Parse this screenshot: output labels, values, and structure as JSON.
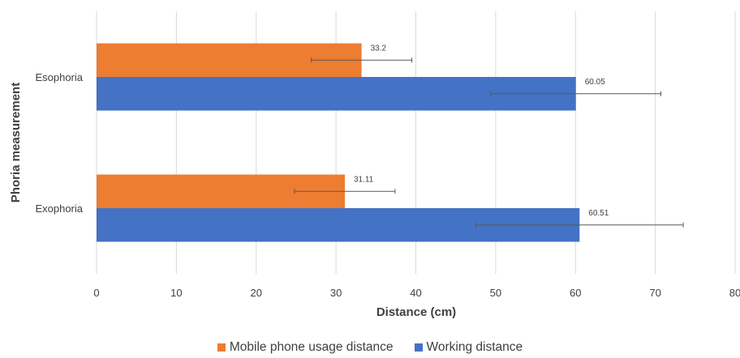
{
  "chart_data": {
    "type": "bar",
    "orientation": "horizontal",
    "categories": [
      "Esophoria",
      "Exophoria"
    ],
    "series": [
      {
        "name": "Mobile phone usage distance",
        "color": "#ED7D31",
        "values": [
          33.2,
          31.11
        ],
        "error_low": [
          26.9,
          24.8
        ],
        "error_high": [
          39.5,
          37.4
        ]
      },
      {
        "name": "Working distance",
        "color": "#4472C4",
        "values": [
          60.05,
          60.51
        ],
        "error_low": [
          49.4,
          47.5
        ],
        "error_high": [
          70.7,
          73.5
        ]
      }
    ],
    "data_labels": [
      [
        "33.2",
        "31.11"
      ],
      [
        "60.05",
        "60.51"
      ]
    ],
    "xlabel": "Distance (cm)",
    "ylabel": "Phoria measurement",
    "xlim": [
      0,
      80
    ],
    "xticks": [
      0,
      10,
      20,
      30,
      40,
      50,
      60,
      70,
      80
    ],
    "grid": "vertical",
    "legend_position": "bottom"
  }
}
